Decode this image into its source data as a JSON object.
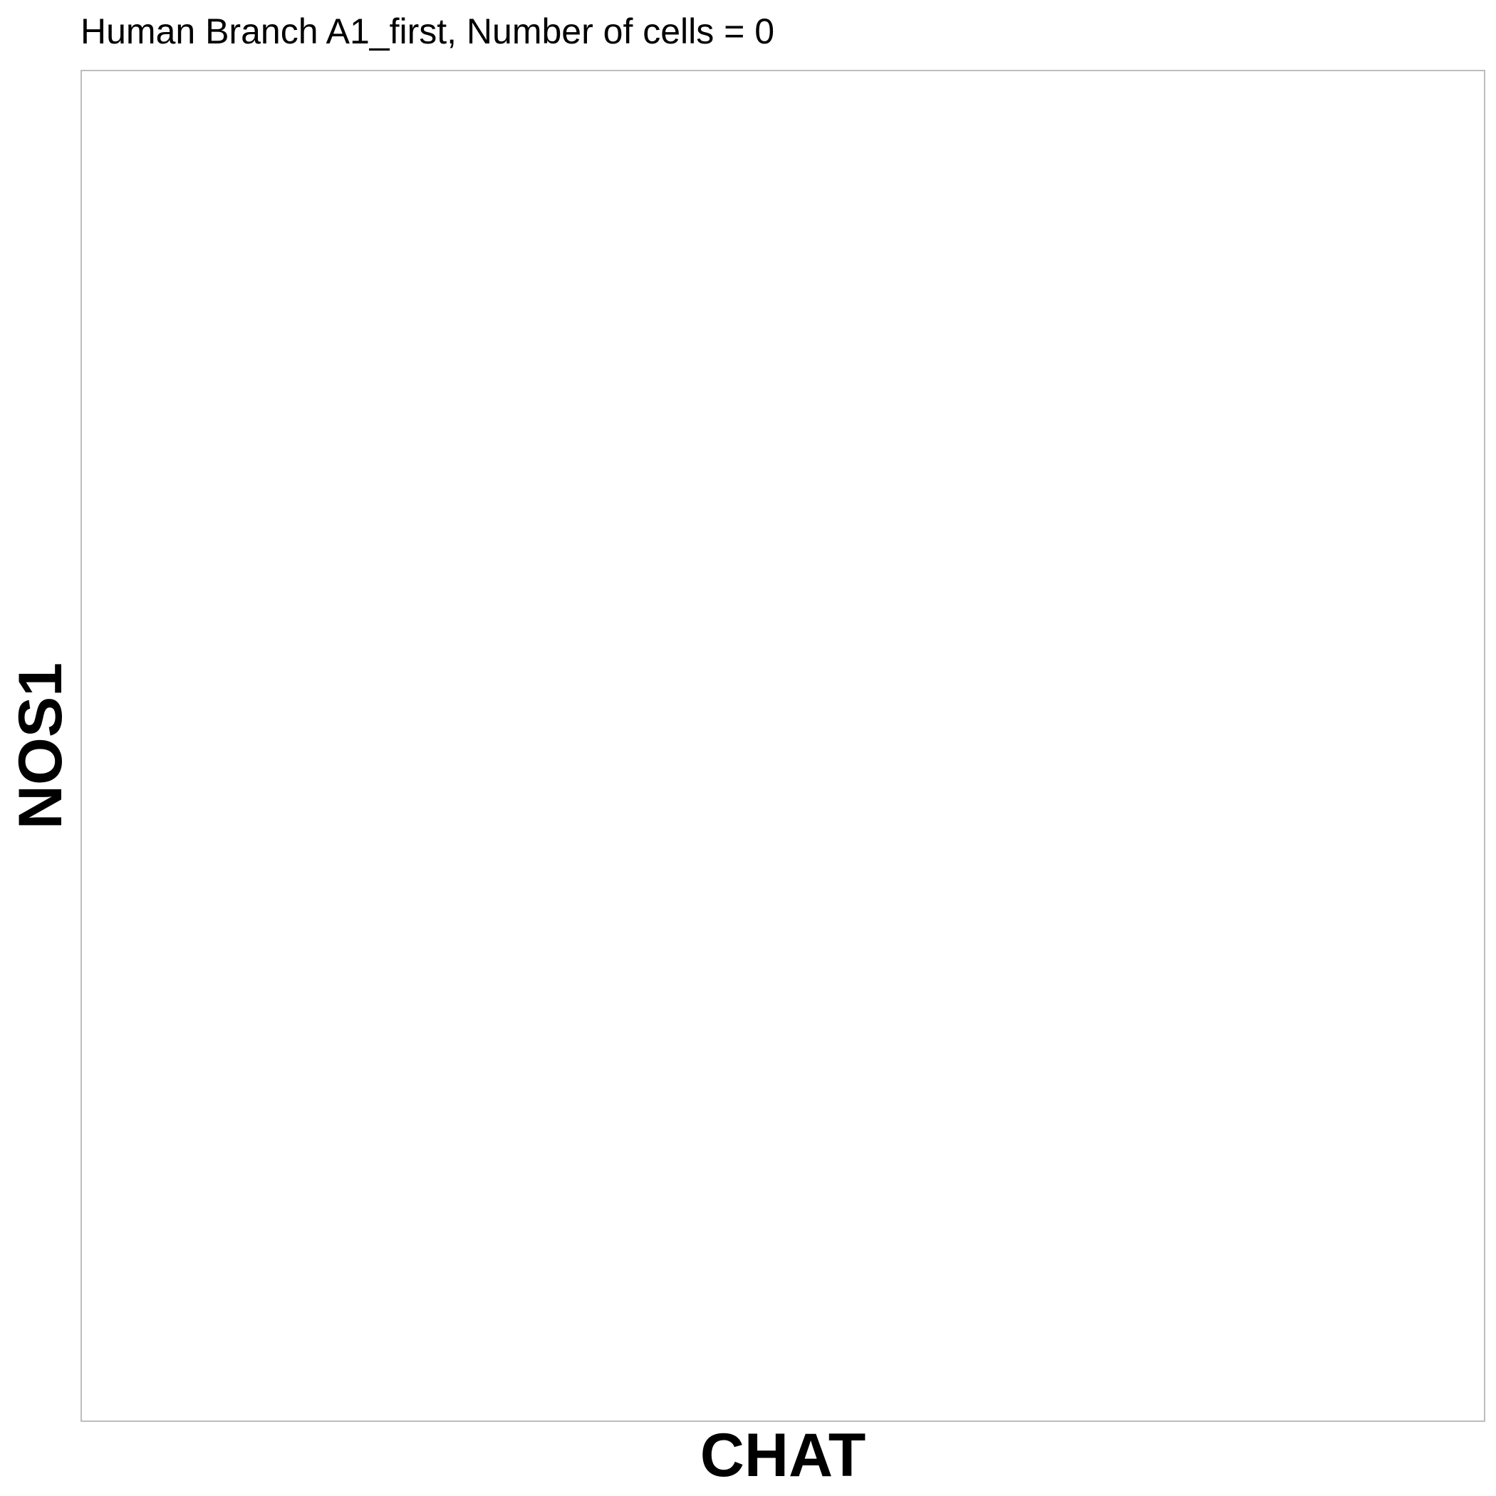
{
  "chart_data": {
    "type": "scatter",
    "title": "Human Branch A1_first, Number of cells = 0",
    "xlabel": "CHAT",
    "ylabel": "NOS1",
    "points": [],
    "grid": false,
    "legend": "none",
    "panel_border_color": "#bdbdbd"
  }
}
